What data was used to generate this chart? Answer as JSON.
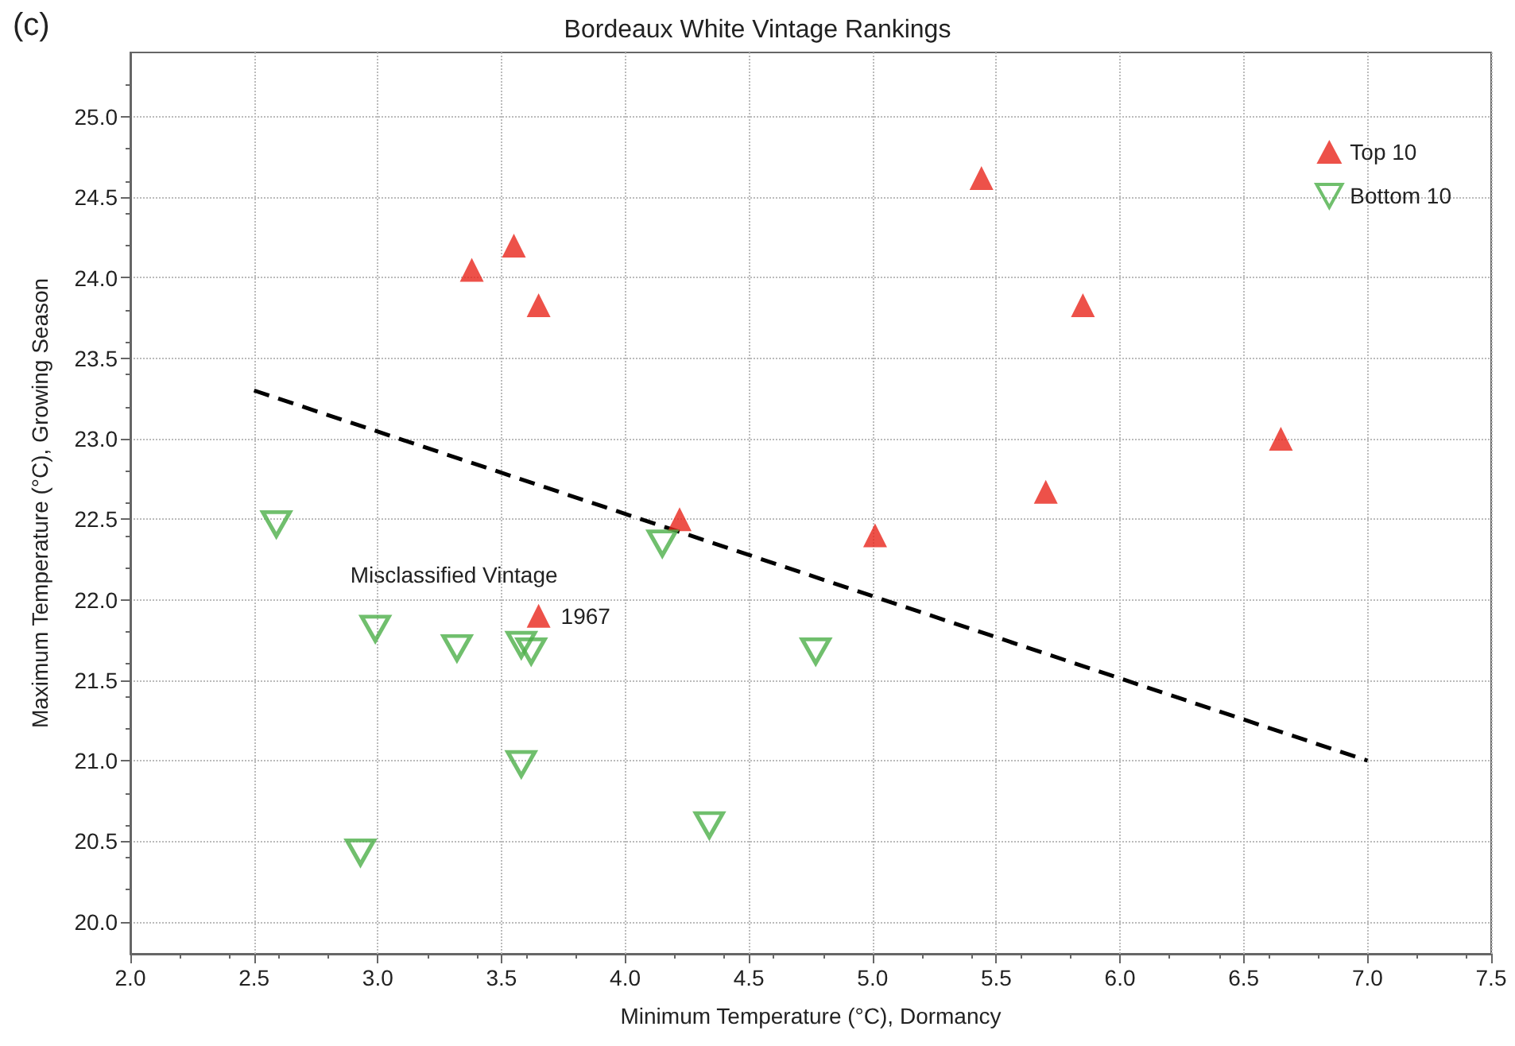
{
  "chart_data": {
    "type": "scatter",
    "title": "Bordeaux White Vintage Rankings",
    "xlabel": "Minimum Temperature (°C), Dormancy",
    "ylabel": "Maximum Temperature (°C), Growing Season",
    "annotations": [
      "(c)",
      "Misclassified Vintage",
      {
        "text": "1967",
        "x": 3.65,
        "y": 21.9
      }
    ],
    "series": [
      {
        "name": "Top 10",
        "color": "#e8251c",
        "marker": "triangle",
        "x": [
          3.38,
          3.55,
          3.65,
          4.22,
          5.01,
          5.44,
          5.7,
          5.85,
          6.65,
          3.65
        ],
        "values": [
          24.05,
          24.2,
          23.83,
          22.5,
          22.4,
          24.62,
          22.67,
          23.83,
          23.0,
          21.9
        ]
      },
      {
        "name": "Bottom 10",
        "color": "#4caf48",
        "marker": "triangle",
        "x": [
          2.59,
          2.99,
          3.32,
          3.58,
          3.62,
          4.15,
          4.77,
          3.58,
          4.34,
          2.93
        ],
        "values": [
          22.47,
          21.82,
          21.7,
          21.72,
          21.68,
          22.35,
          21.68,
          20.98,
          20.6,
          20.43
        ]
      },
      {
        "type": "line",
        "color": "#000000",
        "line_style": "dashed",
        "marker": "none",
        "x": [
          2.5,
          7.0
        ],
        "values": [
          23.3,
          21.0
        ]
      }
    ],
    "xlim": [
      2.0,
      7.5
    ],
    "ylim": [
      19.8,
      25.4
    ],
    "xticks": [
      {
        "value": 2,
        "label": "2.0"
      },
      2.5,
      {
        "value": 3,
        "label": "3.0"
      },
      3.5,
      {
        "value": 4,
        "label": "4.0"
      },
      4.5,
      {
        "value": 5,
        "label": "5.0"
      },
      5.5,
      {
        "value": 6,
        "label": "6.0"
      },
      6.5,
      {
        "value": 7,
        "label": "7.0"
      },
      7.5
    ],
    "yticks": [
      {
        "value": 20,
        "label": "20.0"
      },
      20.5,
      {
        "value": 21,
        "label": "21.0"
      },
      21.5,
      {
        "value": 22,
        "label": "22.0"
      },
      22.5,
      {
        "value": 23,
        "label": "23.0"
      },
      23.5,
      {
        "value": 24,
        "label": "24.0"
      },
      24.5,
      {
        "value": 25,
        "label": "25.0"
      }
    ],
    "grid": true,
    "legend": "top right"
  }
}
